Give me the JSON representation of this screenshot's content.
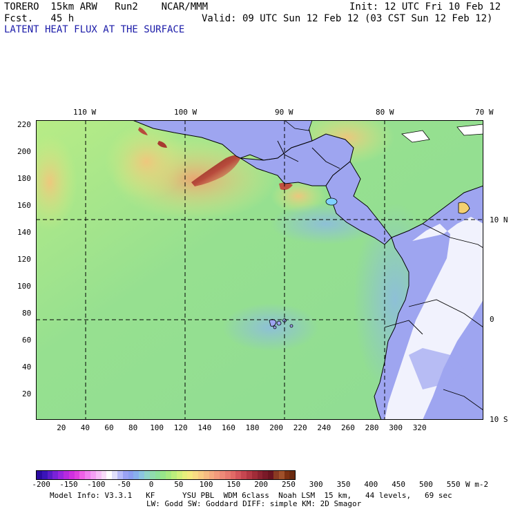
{
  "header": {
    "model": "TORERO  15km ARW   Run2    NCAR/MMM",
    "init": "Init: 12 UTC Fri 10 Feb 12",
    "fcst": "Fcst.   45 h",
    "valid": "Valid: 09 UTC Sun 12 Feb 12 (03 CST Sun 12 Feb 12)",
    "field_title": "LATENT HEAT FLUX AT THE SURFACE"
  },
  "map": {
    "lon_labels": [
      "110 W",
      "100 W",
      "90 W",
      "80 W",
      "70 W"
    ],
    "lat_labels": [
      "10 N",
      "0",
      "10 S"
    ],
    "x_ticks": [
      "20",
      "40",
      "60",
      "80",
      "100",
      "120",
      "140",
      "160",
      "180",
      "200",
      "220",
      "240",
      "260",
      "280",
      "300",
      "320"
    ],
    "y_ticks": [
      "220",
      "200",
      "180",
      "160",
      "140",
      "120",
      "100",
      "80",
      "60",
      "40",
      "20"
    ],
    "ocean_color": "#8fe08c",
    "land_color": "#9ea5f0",
    "high_flux_color": "#7a2b14"
  },
  "colorbar": {
    "labels": [
      "-200",
      "-150",
      "-100",
      "-50",
      "0",
      "50",
      "100",
      "150",
      "200",
      "250",
      "300",
      "350",
      "400",
      "450",
      "500",
      "550"
    ],
    "units": "W m-2",
    "colors": [
      "#2a0aa0",
      "#3a14b8",
      "#5a1cc8",
      "#7a22d8",
      "#9a26e0",
      "#b82ae0",
      "#d030e0",
      "#e040e0",
      "#ee60e8",
      "#f080f0",
      "#f4a0f4",
      "#f6c0f6",
      "#f8dcf8",
      "#ffffff",
      "#e0e0fc",
      "#b8bcf8",
      "#9aa2f4",
      "#8c9ef0",
      "#88b0ec",
      "#8cc4e0",
      "#90d4c8",
      "#90dcae",
      "#8ee29a",
      "#98e68a",
      "#a8ea80",
      "#bcee7c",
      "#d2f07c",
      "#e6f07c",
      "#f4ea80",
      "#f8dc84",
      "#f8cc84",
      "#f6bc82",
      "#f4aa80",
      "#f29a7c",
      "#ee8a78",
      "#e87a70",
      "#e06a66",
      "#d4565c",
      "#c64650",
      "#b43844",
      "#a02c38",
      "#8c2230",
      "#7a1a28",
      "#6a1420",
      "#8a3a22",
      "#a0502a",
      "#7c3012",
      "#6a2a10"
    ]
  },
  "footer": {
    "line1": "Model Info: V3.3.1   KF      YSU PBL  WDM 6class  Noah LSM  15 km,   44 levels,   69 sec",
    "line2": "LW: Godd SW: Goddard DIFF: simple KM: 2D Smagor"
  }
}
